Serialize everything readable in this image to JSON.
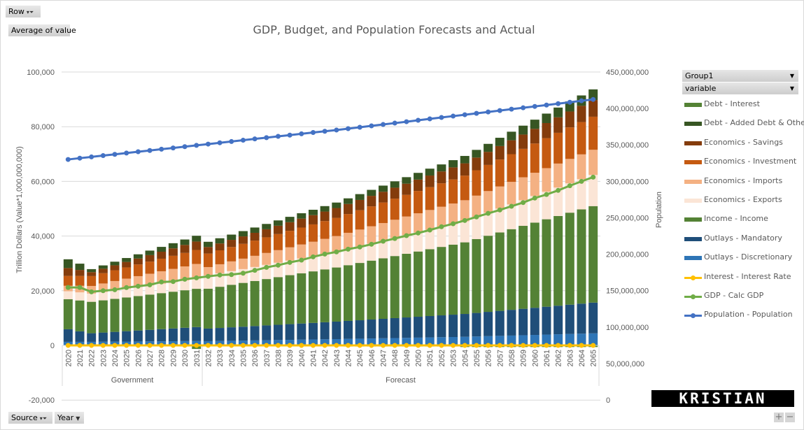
{
  "controls": {
    "row_button": "Row",
    "value_button": "Average of value",
    "source_button": "Source",
    "year_button": "Year",
    "legend_group_button": "Group1",
    "legend_variable_button": "variable",
    "zoom_in": "+",
    "zoom_out": "−"
  },
  "logo_text": "KRISTIAN ZUZEK",
  "chart_data": {
    "type": "bar",
    "stacked": true,
    "title": "GDP, Budget, and Population Forecasts and Actual",
    "ylabel": "Trillion Dollars (Value*1,000,000,000)",
    "y2label": "Population",
    "ylim": [
      -20000,
      100000
    ],
    "y2lim": [
      0,
      450000000
    ],
    "yticks": [
      "100,000",
      "80,000",
      "60,000",
      "40,000",
      "20,000",
      "0",
      "-20,000"
    ],
    "y2ticks": [
      "450,000,000",
      "400,000,000",
      "350,000,000",
      "300,000,000",
      "250,000,000",
      "200,000,000",
      "150,000,000",
      "100,000,000",
      "50,000,000",
      "0"
    ],
    "grid": true,
    "legend_position": "right",
    "groups": [
      {
        "label": "Government",
        "count": 12
      },
      {
        "label": "Forecast",
        "count": 34
      }
    ],
    "categories": [
      "2020",
      "2021",
      "2022",
      "2023",
      "2024",
      "2025",
      "2026",
      "2027",
      "2028",
      "2029",
      "2030",
      "2031",
      "2032",
      "2033",
      "2034",
      "2035",
      "2036",
      "2037",
      "2038",
      "2039",
      "2040",
      "2041",
      "2042",
      "2043",
      "2044",
      "2045",
      "2046",
      "2047",
      "2048",
      "2049",
      "2050",
      "2051",
      "2052",
      "2053",
      "2054",
      "2055",
      "2056",
      "2057",
      "2058",
      "2059",
      "2060",
      "2061",
      "2062",
      "2063",
      "2064",
      "2065"
    ],
    "series": [
      {
        "name": "Debt - Interest",
        "kind": "bar",
        "color": "#548235",
        "values": [
          0,
          0,
          0,
          0,
          0,
          0,
          0,
          0,
          0,
          -300,
          -400,
          -1300,
          -300,
          -300,
          -300,
          -300,
          -300,
          -300,
          -300,
          -300,
          -300,
          -300,
          -300,
          -300,
          -400,
          -400,
          -400,
          -400,
          -400,
          -400,
          -400,
          -400,
          -400,
          -400,
          -600,
          -600,
          -600,
          -600,
          -600,
          -600,
          -600,
          -600,
          -600,
          -600,
          -600,
          -600
        ]
      },
      {
        "name": "Debt - Added Debt & Other",
        "kind": "bar",
        "color": "#375623",
        "values": [
          3200,
          2300,
          1100,
          1210,
          1320,
          1430,
          1540,
          1660,
          1770,
          1880,
          1990,
          2100,
          1900,
          1910,
          1920,
          1930,
          1940,
          1950,
          1950,
          1960,
          1970,
          1980,
          1990,
          2000,
          2060,
          2130,
          2190,
          2250,
          2320,
          2380,
          2450,
          2510,
          2570,
          2640,
          2700,
          2810,
          2920,
          3030,
          3140,
          3250,
          3350,
          3460,
          3570,
          3680,
          3790,
          3900
        ]
      },
      {
        "name": "Economics - Savings",
        "kind": "bar",
        "color": "#843C0C",
        "values": [
          2900,
          2200,
          1450,
          1630,
          1820,
          2000,
          2180,
          2370,
          2550,
          2730,
          2920,
          3100,
          2400,
          2510,
          2620,
          2730,
          2840,
          2950,
          3050,
          3160,
          3270,
          3380,
          3490,
          3600,
          3680,
          3760,
          3850,
          3930,
          4010,
          4090,
          4170,
          4250,
          4340,
          4420,
          4500,
          4650,
          4790,
          4940,
          5080,
          5230,
          5370,
          5520,
          5660,
          5810,
          5950,
          6100
        ]
      },
      {
        "name": "Economics - Investment",
        "kind": "bar",
        "color": "#C55A11",
        "values": [
          3600,
          3600,
          3600,
          3770,
          3930,
          4100,
          4270,
          4430,
          4600,
          4770,
          4930,
          5100,
          4950,
          5100,
          5260,
          5410,
          5570,
          5720,
          5880,
          6030,
          6190,
          6340,
          6500,
          6650,
          6860,
          7080,
          7290,
          7510,
          7720,
          7930,
          8150,
          8360,
          8570,
          8790,
          9000,
          9280,
          9560,
          9850,
          10130,
          10410,
          10690,
          10970,
          11250,
          11540,
          11820,
          12100
        ]
      },
      {
        "name": "Economics - Imports",
        "kind": "bar",
        "color": "#F4B183",
        "values": [
          2000,
          2400,
          2800,
          3090,
          3380,
          3670,
          3960,
          4240,
          4530,
          4820,
          5110,
          5400,
          3050,
          3310,
          3570,
          3830,
          4090,
          4350,
          4600,
          4860,
          5120,
          5380,
          5640,
          5900,
          6060,
          6230,
          6390,
          6550,
          6720,
          6880,
          7050,
          7210,
          7370,
          7540,
          7700,
          7840,
          7970,
          8110,
          8250,
          8380,
          8520,
          8650,
          8790,
          8930,
          9060,
          9200
        ]
      },
      {
        "name": "Economics - Exports",
        "kind": "bar",
        "color": "#FBE5D6",
        "values": [
          2900,
          2950,
          3000,
          3080,
          3160,
          3230,
          3310,
          3390,
          3470,
          3540,
          3620,
          3700,
          4850,
          4920,
          4990,
          5050,
          5120,
          5190,
          5260,
          5330,
          5400,
          5460,
          5530,
          5600,
          5790,
          5980,
          6170,
          6360,
          6550,
          6750,
          6940,
          7130,
          7320,
          7510,
          7700,
          8040,
          8370,
          8710,
          9050,
          9380,
          9720,
          10050,
          10390,
          10730,
          11060,
          11400
        ]
      },
      {
        "name": "Income - Income",
        "kind": "bar",
        "color": "#548235",
        "values": [
          11000,
          11300,
          11500,
          11780,
          12060,
          12330,
          12610,
          12890,
          13170,
          13440,
          13720,
          14000,
          14600,
          15070,
          15550,
          16020,
          16490,
          16960,
          17440,
          17910,
          18380,
          18850,
          19330,
          19800,
          20380,
          20960,
          21550,
          22130,
          22710,
          23290,
          23870,
          24450,
          25040,
          25620,
          26200,
          27030,
          27850,
          28680,
          29510,
          30340,
          31160,
          31990,
          32820,
          33650,
          34470,
          35300
        ]
      },
      {
        "name": "Outlays - Mandatory",
        "kind": "bar",
        "color": "#1F4E79",
        "values": [
          4600,
          3850,
          3150,
          3370,
          3580,
          3800,
          4020,
          4230,
          4450,
          4670,
          4880,
          5100,
          4600,
          4760,
          4930,
          5090,
          5250,
          5420,
          5580,
          5750,
          5910,
          6070,
          6240,
          6400,
          6580,
          6750,
          6930,
          7110,
          7290,
          7460,
          7640,
          7820,
          7990,
          8170,
          8350,
          8610,
          8880,
          9140,
          9410,
          9670,
          9930,
          10200,
          10460,
          10730,
          10990,
          11250
        ]
      },
      {
        "name": "Outlays - Discretionary",
        "kind": "bar",
        "color": "#2E75B6",
        "values": [
          1300,
          1300,
          1300,
          1330,
          1370,
          1400,
          1430,
          1470,
          1500,
          1530,
          1570,
          1600,
          1550,
          1620,
          1690,
          1750,
          1820,
          1890,
          1960,
          2030,
          2100,
          2160,
          2230,
          2300,
          2380,
          2450,
          2530,
          2610,
          2690,
          2760,
          2840,
          2920,
          3000,
          3070,
          3150,
          3260,
          3380,
          3490,
          3600,
          3720,
          3830,
          3950,
          4060,
          4170,
          4290,
          4400
        ]
      },
      {
        "name": "Interest - Interest Rate",
        "kind": "line",
        "axis": "left",
        "color": "#FFC000",
        "values": [
          3,
          3,
          3,
          3,
          3,
          3,
          3,
          3,
          3,
          3,
          3,
          3,
          3,
          3,
          3,
          3,
          3,
          3,
          3,
          3,
          3,
          3,
          3,
          3,
          3,
          3,
          3,
          3,
          3,
          3,
          3,
          3,
          3,
          3,
          3,
          3,
          3,
          3,
          3,
          3,
          3,
          3,
          3,
          3,
          3,
          3
        ]
      },
      {
        "name": "GDP - Calc GDP",
        "kind": "line",
        "axis": "left",
        "color": "#70AD47",
        "values": [
          21200,
          21200,
          19600,
          20000,
          20350,
          21150,
          21650,
          22150,
          23200,
          23350,
          24200,
          24700,
          25250,
          25750,
          25900,
          26400,
          27450,
          28550,
          29350,
          30350,
          31200,
          32400,
          33400,
          34200,
          35200,
          36000,
          37000,
          38100,
          39100,
          40150,
          41100,
          42200,
          43400,
          44500,
          45700,
          47000,
          48300,
          49550,
          50900,
          52250,
          53900,
          55200,
          56700,
          58400,
          60000,
          61550
        ]
      },
      {
        "name": "Population - Population",
        "kind": "line",
        "axis": "right",
        "color": "#4472C4",
        "values": [
          330000000,
          331800000,
          333500000,
          335300000,
          337000000,
          338800000,
          340600000,
          342300000,
          344100000,
          345800000,
          347600000,
          349400000,
          351100000,
          352900000,
          354600000,
          356400000,
          358200000,
          359900000,
          361700000,
          363400000,
          365200000,
          367000000,
          368700000,
          370400000,
          372300000,
          374200000,
          376100000,
          378000000,
          379900000,
          381800000,
          383800000,
          385700000,
          387600000,
          389500000,
          391400000,
          393300000,
          395200000,
          397100000,
          399000000,
          400900000,
          402800000,
          404700000,
          406600000,
          408500000,
          410500000,
          412400000
        ]
      }
    ]
  }
}
